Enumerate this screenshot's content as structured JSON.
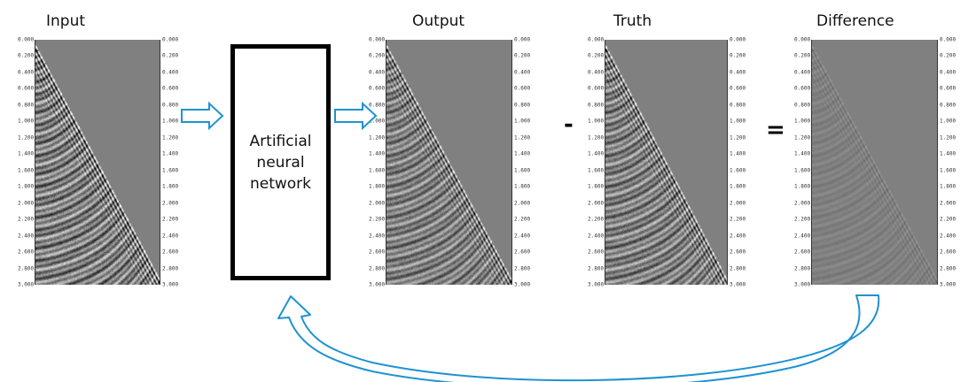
{
  "titles": {
    "input": "Input",
    "output": "Output",
    "truth": "Truth",
    "difference": "Difference"
  },
  "network_label": "Artificial neural network",
  "operators": {
    "minus": "-",
    "equals": "="
  },
  "axis_ticks": [
    "0.000",
    "0.200",
    "0.400",
    "0.600",
    "0.800",
    "1.000",
    "1.200",
    "1.400",
    "1.600",
    "1.800",
    "2.000",
    "2.200",
    "2.400",
    "2.600",
    "2.800",
    "3.000"
  ],
  "colors": {
    "arrow": "#1f93d0",
    "box": "#000000",
    "background_gray": "#808080"
  }
}
